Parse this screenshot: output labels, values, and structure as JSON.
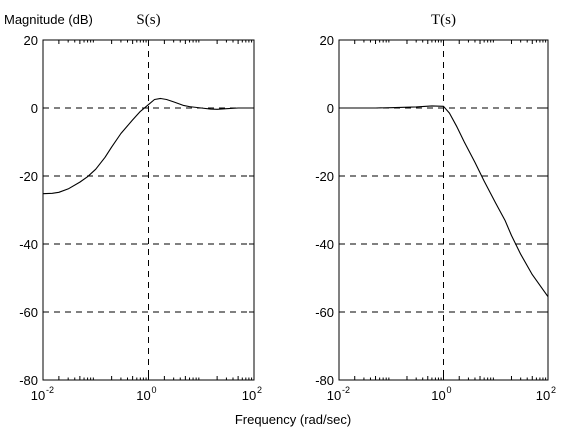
{
  "figure": {
    "ylabel": "Magnitude (dB)",
    "xlabel": "Frequency (rad/sec)"
  },
  "chart_data": [
    {
      "type": "line",
      "title": "S(s)",
      "x_scale": "log",
      "xlim": [
        0.01,
        100
      ],
      "ylim": [
        -80,
        20
      ],
      "xticks": [
        0.01,
        1,
        100
      ],
      "xtick_labels": [
        {
          "base": "10",
          "exp": "-2"
        },
        {
          "base": "10",
          "exp": "0"
        },
        {
          "base": "10",
          "exp": "2"
        }
      ],
      "yticks": [
        20,
        0,
        -20,
        -40,
        -60,
        -80
      ],
      "ytick_labels": [
        "20",
        "0",
        "-20",
        "-40",
        "-60",
        "-80"
      ],
      "grid": true,
      "series": [
        {
          "x": [
            0.01,
            0.015,
            0.02,
            0.03,
            0.05,
            0.07,
            0.1,
            0.15,
            0.2,
            0.3,
            0.5,
            0.7,
            1.0,
            1.3,
            1.7,
            2.2,
            3.0,
            4.5,
            6,
            10,
            15,
            20,
            30,
            50,
            100
          ],
          "y": [
            -25.2,
            -25.1,
            -24.8,
            -23.8,
            -21.8,
            -20.2,
            -18.0,
            -14.5,
            -11.5,
            -7.5,
            -3.5,
            -1.0,
            1.0,
            2.5,
            2.8,
            2.5,
            1.8,
            0.8,
            0.4,
            0.0,
            -0.3,
            -0.4,
            -0.2,
            0.0,
            0.0
          ]
        }
      ]
    },
    {
      "type": "line",
      "title": "T(s)",
      "x_scale": "log",
      "xlim": [
        0.01,
        100
      ],
      "ylim": [
        -80,
        20
      ],
      "xticks": [
        0.01,
        1,
        100
      ],
      "xtick_labels": [
        {
          "base": "10",
          "exp": "-2"
        },
        {
          "base": "10",
          "exp": "0"
        },
        {
          "base": "10",
          "exp": "2"
        }
      ],
      "yticks": [
        20,
        0,
        -20,
        -40,
        -60,
        -80
      ],
      "ytick_labels": [
        "20",
        "0",
        "-20",
        "-40",
        "-60",
        "-80"
      ],
      "grid": true,
      "series": [
        {
          "x": [
            0.01,
            0.05,
            0.1,
            0.3,
            0.6,
            1.0,
            1.3,
            1.8,
            2.5,
            4,
            6,
            10,
            15,
            20,
            30,
            50,
            100
          ],
          "y": [
            0.0,
            0.0,
            0.1,
            0.3,
            0.6,
            0.5,
            -1.5,
            -5.5,
            -10.0,
            -16.0,
            -21.5,
            -28.0,
            -33.0,
            -37.5,
            -43.0,
            -49.0,
            -55.5
          ]
        }
      ]
    }
  ]
}
